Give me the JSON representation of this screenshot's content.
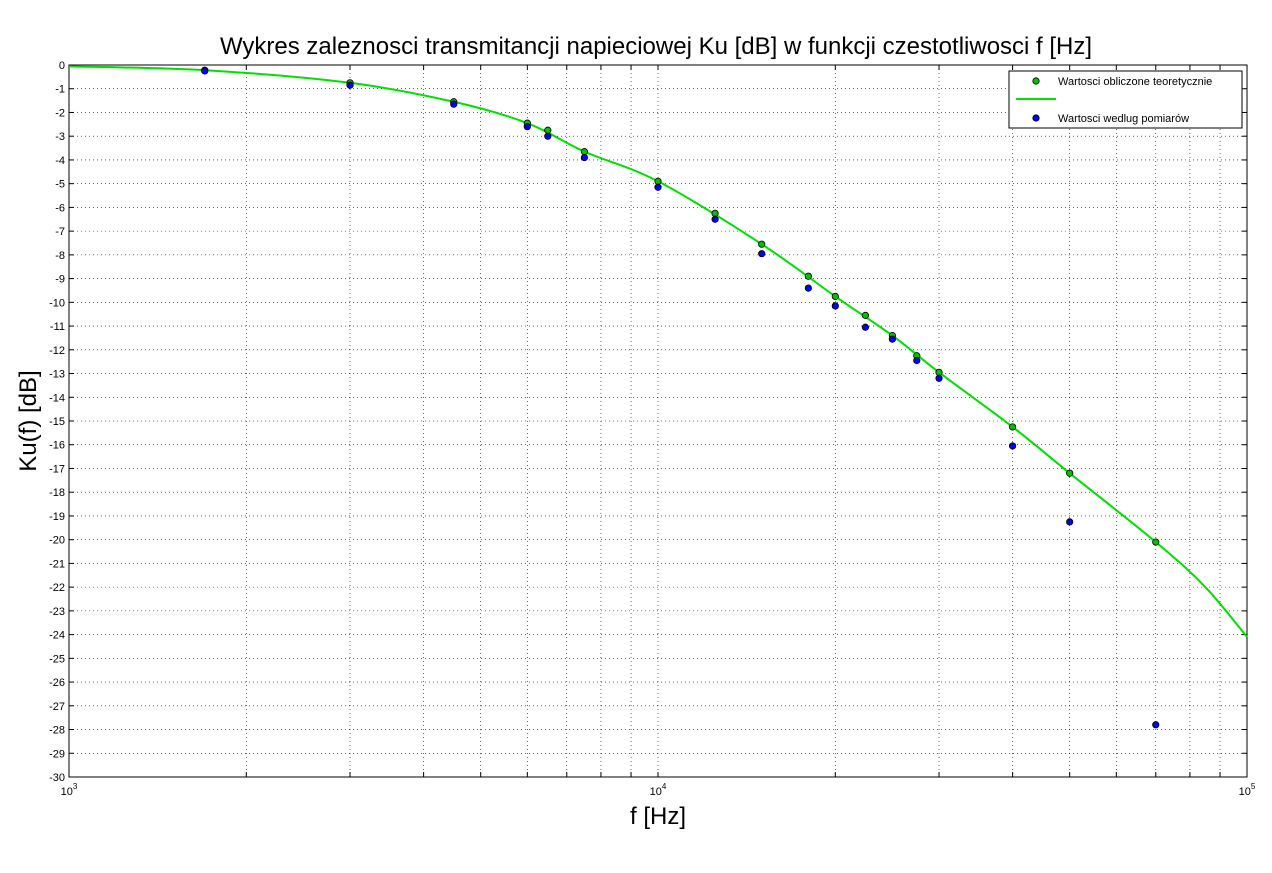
{
  "chart_data": {
    "type": "scatter",
    "title": "Wykres zaleznosci transmitancji napieciowej Ku [dB] w funkcji czestotliwosci f [Hz]",
    "xlabel": "f [Hz]",
    "ylabel": "Ku(f) [dB]",
    "xscale": "log",
    "xlim": [
      1000,
      100000
    ],
    "ylim": [
      -30,
      0
    ],
    "yticks": [
      0,
      -1,
      -2,
      -3,
      -4,
      -5,
      -6,
      -7,
      -8,
      -9,
      -10,
      -11,
      -12,
      -13,
      -14,
      -15,
      -16,
      -17,
      -18,
      -19,
      -20,
      -21,
      -22,
      -23,
      -24,
      -25,
      -26,
      -27,
      -28,
      -29,
      -30
    ],
    "xticks": [
      {
        "value": 1000,
        "base": "10",
        "exp": "3"
      },
      {
        "value": 10000,
        "base": "10",
        "exp": "4"
      },
      {
        "value": 100000,
        "base": "10",
        "exp": "5"
      }
    ],
    "grid": true,
    "legend_position": "top-right",
    "series": [
      {
        "name": "Wartosci obliczone teoretycznie",
        "kind": "markers",
        "marker_color": "#00c000",
        "x": [
          1700,
          3000,
          4500,
          6000,
          6500,
          7500,
          10000,
          12500,
          15000,
          18000,
          20000,
          22500,
          25000,
          27500,
          30000,
          40000,
          50000,
          70000
        ],
        "y": [
          -0.22,
          -0.75,
          -1.55,
          -2.45,
          -2.75,
          -3.65,
          -4.9,
          -6.25,
          -7.55,
          -8.9,
          -9.75,
          -10.55,
          -11.4,
          -12.25,
          -12.95,
          -15.25,
          -17.2,
          -20.1
        ]
      },
      {
        "name": "",
        "kind": "line",
        "color": "#00e000",
        "x": [
          1000,
          1700,
          3000,
          4500,
          6000,
          7500,
          10000,
          15000,
          20000,
          25000,
          30000,
          40000,
          50000,
          70000,
          85000,
          100000
        ],
        "y": [
          -0.06,
          -0.22,
          -0.75,
          -1.55,
          -2.45,
          -3.65,
          -4.9,
          -7.55,
          -9.75,
          -11.4,
          -12.95,
          -15.25,
          -17.2,
          -20.1,
          -22.0,
          -24.1
        ]
      },
      {
        "name": "Wartosci wedlug pomiarów",
        "kind": "markers",
        "marker_color": "#0000ff",
        "x": [
          1700,
          3000,
          4500,
          6000,
          6500,
          7500,
          10000,
          12500,
          15000,
          18000,
          20000,
          22500,
          25000,
          27500,
          30000,
          40000,
          50000,
          70000
        ],
        "y": [
          -0.25,
          -0.85,
          -1.65,
          -2.6,
          -3.0,
          -3.9,
          -5.15,
          -6.5,
          -7.95,
          -9.4,
          -10.15,
          -11.05,
          -11.55,
          -12.45,
          -13.2,
          -16.05,
          -19.25,
          -27.8
        ]
      }
    ]
  }
}
